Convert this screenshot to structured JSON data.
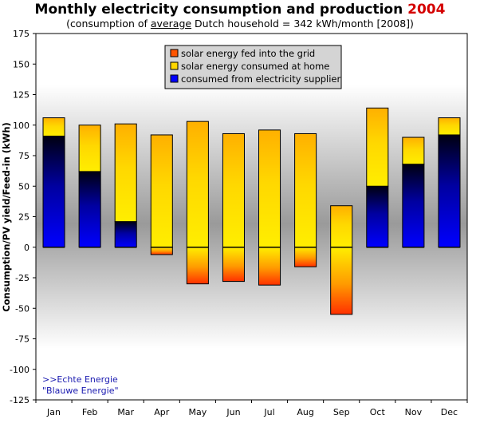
{
  "header": {
    "title": "Monthly electricity consumption and production",
    "title_year": "2004",
    "subtitle_pre": "(consumption of",
    "subtitle_underlined": "average",
    "subtitle_post": "Dutch household = 342 kWh/month [2008])"
  },
  "footnote": {
    "line1": ">>Echte Energie",
    "line2": "\"Blauwe Energie\""
  },
  "colors": {
    "title_year": "#d40000",
    "footnote": "#1a1ab0",
    "solar_home": "#ffd700",
    "fed_in": "#ff5500",
    "supplier": "#0000ff"
  },
  "chart_data": {
    "type": "bar",
    "stacked": true,
    "categories": [
      "Jan",
      "Feb",
      "Mar",
      "Apr",
      "May",
      "Jun",
      "Jul",
      "Aug",
      "Sep",
      "Oct",
      "Nov",
      "Dec"
    ],
    "series": [
      {
        "name": "solar energy fed into the grid",
        "values": [
          0,
          0,
          0,
          -6,
          -30,
          -28,
          -31,
          -16,
          -55,
          0,
          0,
          0
        ]
      },
      {
        "name": "solar energy consumed at home",
        "values": [
          15,
          38,
          80,
          92,
          103,
          93,
          96,
          93,
          34,
          64,
          22,
          14
        ]
      },
      {
        "name": "consumed from electricity supplier",
        "values": [
          91,
          62,
          21,
          0,
          0,
          0,
          0,
          0,
          0,
          50,
          68,
          92
        ]
      }
    ],
    "ylabel": "Consumption/PV yield/Feed-in (kWh)",
    "ylim": [
      -125,
      175
    ],
    "yticks": [
      -125,
      -100,
      -75,
      -50,
      -25,
      0,
      25,
      50,
      75,
      100,
      125,
      150,
      175
    ],
    "grid": false,
    "legend": "top-center"
  }
}
